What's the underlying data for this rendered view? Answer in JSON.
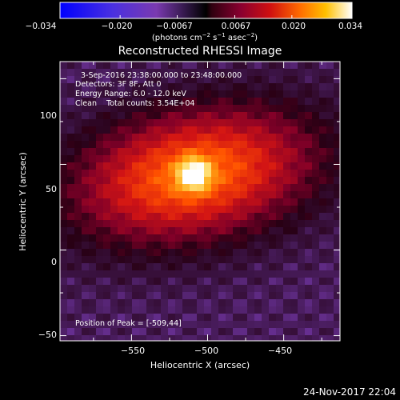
{
  "colorbar": {
    "tick_labels": [
      "−0.034",
      "−0.020",
      "−0.0067",
      "0.0067",
      "0.020",
      "0.034"
    ],
    "tick_values": [
      -0.034,
      -0.02,
      -0.0067,
      0.0067,
      0.02,
      0.034
    ],
    "range": [
      -0.034,
      0.034
    ],
    "unit_main": "(photons cm",
    "unit_sup1": "−2",
    "unit_mid1": " s",
    "unit_sup2": "−1",
    "unit_mid2": " asec",
    "unit_sup3": "−2",
    "unit_end": ")"
  },
  "chart_data": {
    "type": "heatmap",
    "title": "Reconstructed RHESSI Image",
    "xlabel": "Heliocentric X (arcsec)",
    "ylabel": "Heliocentric Y (arcsec)",
    "xlim": [
      -597,
      -413
    ],
    "ylim": [
      -53,
      110
    ],
    "x_ticks": [
      -550,
      -500,
      -450
    ],
    "x_tick_labels": [
      "−550",
      "−500",
      "−450"
    ],
    "y_ticks": [
      100,
      50,
      0,
      -50
    ],
    "y_tick_labels": [
      "100",
      "50",
      "0",
      "−50"
    ],
    "peak": [
      -509,
      44
    ],
    "annotations": {
      "time_range": "3-Sep-2016 23:38:00.000 to 23:48:00.000",
      "detectors": "Detectors: 3F 8F, Att 0",
      "energy": "Energy Range: 6.0 - 12.0 keV",
      "clean": "Clean    Total counts: 3.54E+04",
      "peak_label": "Position of Peak = [-509,44]"
    }
  },
  "footer": {
    "date": "24-Nov-2017 22:04"
  },
  "colors": {
    "background": "#000000",
    "frame": "#ffffff"
  }
}
